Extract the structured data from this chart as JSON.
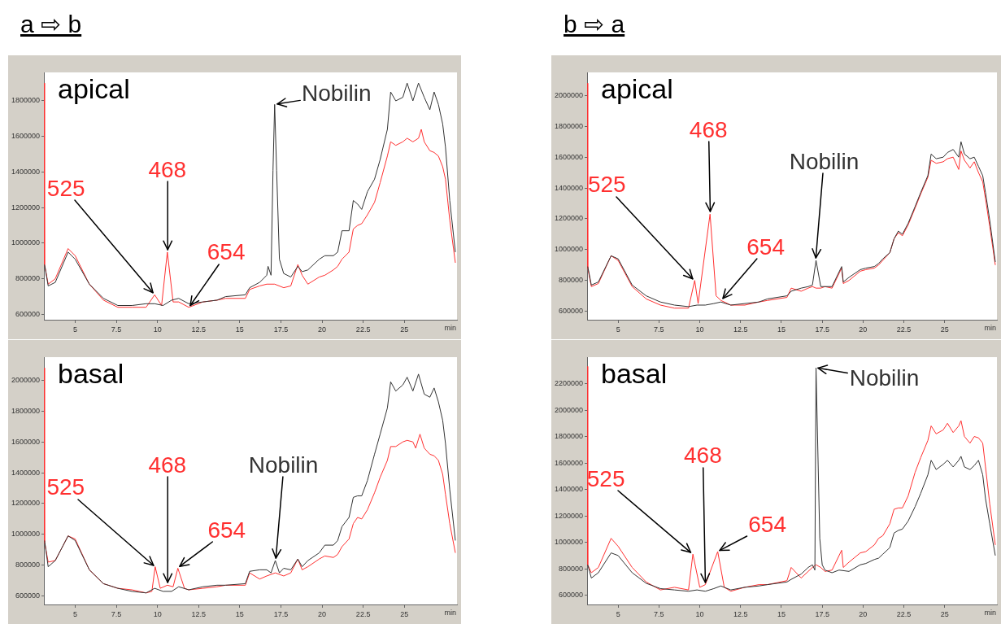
{
  "chart_data": [
    {
      "type": "line",
      "title": "a ⇨ b",
      "subtitle": "apical",
      "xlabel": "min",
      "xlim": [
        3.1,
        28.2
      ],
      "xticks": [
        5,
        7.5,
        10,
        12.5,
        15,
        17.5,
        20,
        22.5,
        25
      ],
      "ylim": [
        570000,
        1960000
      ],
      "yticks": [
        600000,
        800000,
        1000000,
        1200000,
        1400000,
        1600000,
        1800000
      ],
      "series": [
        {
          "color": "#333333",
          "x": [
            3.14,
            3.36,
            3.79,
            4.57,
            5,
            5.86,
            6.72,
            7.59,
            8.45,
            9.31,
            9.83,
            10.34,
            10.86,
            11.29,
            11.9,
            12.76,
            13.62,
            14.14,
            15.34,
            15.6,
            16.21,
            16.64,
            16.72,
            16.9,
            17.02,
            17.12,
            17.24,
            17.41,
            17.67,
            18.1,
            18.53,
            18.79,
            19.14,
            19.83,
            20.17,
            20.69,
            20.95,
            21.21,
            21.64,
            21.9,
            22.16,
            22.41,
            22.76,
            23.19,
            23.53,
            23.97,
            24.17,
            24.48,
            24.91,
            25.17,
            25.52,
            25.86,
            26.21,
            26.55,
            26.81,
            27.07,
            27.33,
            27.5,
            27.76,
            28.1
          ],
          "values": [
            880000,
            760000,
            780000,
            950000,
            910000,
            770000,
            690000,
            650000,
            650000,
            660000,
            660000,
            650000,
            680000,
            690000,
            660000,
            670000,
            680000,
            700000,
            710000,
            750000,
            780000,
            820000,
            870000,
            820000,
            1410000,
            1780000,
            1410000,
            910000,
            830000,
            810000,
            870000,
            840000,
            850000,
            910000,
            930000,
            930000,
            950000,
            1070000,
            1070000,
            1240000,
            1220000,
            1190000,
            1290000,
            1360000,
            1470000,
            1640000,
            1850000,
            1800000,
            1820000,
            1900000,
            1800000,
            1900000,
            1820000,
            1750000,
            1850000,
            1780000,
            1670000,
            1540000,
            1240000,
            950000
          ]
        },
        {
          "color": "#ff3030",
          "x": [
            3.1,
            3.14,
            3.36,
            3.79,
            4.57,
            5,
            5.86,
            6.72,
            7.59,
            8.45,
            9.31,
            9.83,
            10.25,
            10.6,
            10.95,
            11.29,
            11.9,
            12.76,
            13.62,
            14.14,
            15.34,
            15.6,
            16.21,
            16.64,
            17.12,
            17.67,
            18.1,
            18.53,
            18.79,
            19.14,
            19.83,
            20.17,
            20.69,
            20.95,
            21.21,
            21.64,
            21.9,
            22.16,
            22.41,
            22.76,
            23.19,
            23.53,
            23.97,
            24.17,
            24.48,
            24.91,
            25.17,
            25.52,
            25.86,
            26.03,
            26.21,
            26.55,
            26.81,
            27.07,
            27.33,
            27.5,
            27.76,
            28.1
          ],
          "values": [
            1900000,
            880000,
            770000,
            800000,
            970000,
            930000,
            770000,
            680000,
            640000,
            640000,
            640000,
            710000,
            650000,
            950000,
            670000,
            670000,
            640000,
            670000,
            680000,
            690000,
            690000,
            740000,
            760000,
            770000,
            770000,
            750000,
            760000,
            880000,
            820000,
            770000,
            810000,
            820000,
            850000,
            870000,
            910000,
            950000,
            1080000,
            1100000,
            1110000,
            1160000,
            1230000,
            1340000,
            1490000,
            1570000,
            1550000,
            1570000,
            1590000,
            1570000,
            1590000,
            1640000,
            1570000,
            1520000,
            1510000,
            1490000,
            1430000,
            1360000,
            1130000,
            890000
          ]
        }
      ],
      "annotations": [
        {
          "text": "525",
          "x": 9.83,
          "y": 710000
        },
        {
          "text": "468",
          "x": 10.6,
          "y": 950000
        },
        {
          "text": "654",
          "x": 11.9,
          "y": 640000
        },
        {
          "text": "Nobilin",
          "x": 17.12,
          "y": 1780000
        }
      ]
    },
    {
      "type": "line",
      "subtitle": "basal",
      "xlabel": "min",
      "xlim": [
        3.1,
        28.2
      ],
      "xticks": [
        5,
        7.5,
        10,
        12.5,
        15,
        17.5,
        20,
        22.5,
        25
      ],
      "ylim": [
        545000,
        2150000
      ],
      "yticks": [
        600000,
        800000,
        1000000,
        1200000,
        1400000,
        1600000,
        1800000,
        2000000
      ],
      "series": [
        {
          "color": "#333333",
          "x": [
            3.14,
            3.36,
            3.79,
            4.57,
            5,
            5.86,
            6.72,
            7.59,
            8.45,
            9.31,
            9.83,
            10.34,
            10.86,
            11.29,
            11.9,
            12.76,
            13.62,
            14.14,
            15.34,
            15.6,
            16.21,
            16.64,
            16.9,
            17.16,
            17.41,
            17.67,
            18.1,
            18.53,
            18.79,
            19.14,
            19.83,
            20.17,
            20.69,
            20.95,
            21.21,
            21.64,
            21.9,
            22.16,
            22.41,
            22.76,
            23.19,
            23.53,
            23.97,
            24.17,
            24.48,
            24.91,
            25.17,
            25.52,
            25.86,
            26.21,
            26.55,
            26.81,
            27.07,
            27.33,
            27.5,
            27.76,
            28.1
          ],
          "values": [
            960000,
            790000,
            830000,
            990000,
            960000,
            770000,
            680000,
            650000,
            630000,
            620000,
            650000,
            630000,
            630000,
            660000,
            640000,
            660000,
            670000,
            670000,
            680000,
            760000,
            770000,
            770000,
            750000,
            830000,
            750000,
            780000,
            770000,
            840000,
            790000,
            830000,
            880000,
            930000,
            930000,
            960000,
            1050000,
            1110000,
            1240000,
            1250000,
            1250000,
            1350000,
            1520000,
            1650000,
            1820000,
            1990000,
            1930000,
            1970000,
            2020000,
            1930000,
            2040000,
            1910000,
            1890000,
            1950000,
            1860000,
            1740000,
            1590000,
            1290000,
            960000
          ]
        },
        {
          "color": "#ff3030",
          "x": [
            3.1,
            3.14,
            3.36,
            3.79,
            4.57,
            5,
            5.86,
            6.72,
            7.59,
            8.45,
            9.31,
            9.66,
            9.86,
            10.17,
            10.6,
            10.95,
            11.24,
            11.64,
            11.9,
            12.76,
            13.62,
            14.14,
            15.34,
            15.6,
            16.21,
            16.64,
            17.16,
            17.67,
            18.1,
            18.53,
            18.79,
            19.14,
            19.83,
            20.17,
            20.69,
            20.95,
            21.21,
            21.64,
            21.9,
            22.16,
            22.41,
            22.76,
            23.19,
            23.53,
            23.97,
            24.17,
            24.48,
            24.91,
            25.17,
            25.52,
            25.69,
            25.95,
            26.21,
            26.55,
            26.81,
            27.07,
            27.33,
            27.5,
            27.76,
            28.1
          ],
          "values": [
            2080000,
            950000,
            820000,
            830000,
            990000,
            970000,
            770000,
            680000,
            650000,
            640000,
            620000,
            630000,
            790000,
            650000,
            670000,
            660000,
            780000,
            650000,
            640000,
            650000,
            660000,
            670000,
            670000,
            750000,
            710000,
            730000,
            750000,
            730000,
            750000,
            840000,
            770000,
            790000,
            840000,
            860000,
            850000,
            870000,
            920000,
            970000,
            1070000,
            1110000,
            1100000,
            1160000,
            1270000,
            1370000,
            1480000,
            1570000,
            1570000,
            1600000,
            1610000,
            1600000,
            1560000,
            1650000,
            1560000,
            1520000,
            1510000,
            1480000,
            1390000,
            1260000,
            1070000,
            880000
          ]
        }
      ],
      "annotations": [
        {
          "text": "525",
          "x": 9.86,
          "y": 790000
        },
        {
          "text": "468",
          "x": 10.6,
          "y": 670000
        },
        {
          "text": "654",
          "x": 11.24,
          "y": 780000
        },
        {
          "text": "Nobilin",
          "x": 17.16,
          "y": 830000
        }
      ]
    },
    {
      "type": "line",
      "title": "b ⇨ a",
      "subtitle": "apical",
      "xlabel": "min",
      "xlim": [
        3.1,
        28.2
      ],
      "xticks": [
        5,
        7.5,
        10,
        12.5,
        15,
        17.5,
        20,
        22.5,
        25
      ],
      "ylim": [
        545000,
        2150000
      ],
      "yticks": [
        600000,
        800000,
        1000000,
        1200000,
        1400000,
        1600000,
        1800000,
        2000000
      ],
      "series": [
        {
          "color": "#333333",
          "x": [
            3.14,
            3.36,
            3.79,
            4.57,
            5,
            5.86,
            6.72,
            7.59,
            8.45,
            9.31,
            9.83,
            10.34,
            10.86,
            11.29,
            11.9,
            12.76,
            13.62,
            14.14,
            15.34,
            15.6,
            16.21,
            16.64,
            16.9,
            17.12,
            17.41,
            17.67,
            18.1,
            18.69,
            18.79,
            19.14,
            19.83,
            20.17,
            20.69,
            20.95,
            21.21,
            21.64,
            21.9,
            22.16,
            22.41,
            22.76,
            23.19,
            23.53,
            23.97,
            24.17,
            24.48,
            24.91,
            25.17,
            25.52,
            25.86,
            26.0,
            26.21,
            26.55,
            26.81,
            27.07,
            27.33,
            27.5,
            27.76,
            28.1
          ],
          "values": [
            890000,
            770000,
            790000,
            960000,
            940000,
            770000,
            700000,
            660000,
            640000,
            630000,
            640000,
            640000,
            650000,
            660000,
            640000,
            650000,
            660000,
            680000,
            700000,
            730000,
            750000,
            760000,
            770000,
            930000,
            760000,
            760000,
            760000,
            890000,
            790000,
            820000,
            870000,
            880000,
            890000,
            910000,
            940000,
            980000,
            1070000,
            1120000,
            1100000,
            1170000,
            1280000,
            1370000,
            1480000,
            1620000,
            1590000,
            1600000,
            1630000,
            1650000,
            1600000,
            1700000,
            1620000,
            1590000,
            1600000,
            1540000,
            1480000,
            1370000,
            1190000,
            920000
          ]
        },
        {
          "color": "#ff3030",
          "x": [
            3.1,
            3.14,
            3.36,
            3.79,
            4.57,
            5,
            5.86,
            6.72,
            7.59,
            8.45,
            9.31,
            9.69,
            9.9,
            10.63,
            11.0,
            11.3,
            11.9,
            12.76,
            13.62,
            14.14,
            15.34,
            15.6,
            16.21,
            16.64,
            16.9,
            17.12,
            17.41,
            17.67,
            18.1,
            18.69,
            18.79,
            19.14,
            19.83,
            20.17,
            20.69,
            20.95,
            21.21,
            21.64,
            21.9,
            22.16,
            22.41,
            22.76,
            23.19,
            23.53,
            23.97,
            24.17,
            24.48,
            24.91,
            25.17,
            25.52,
            25.86,
            26.0,
            26.21,
            26.55,
            26.81,
            27.07,
            27.33,
            27.5,
            27.76,
            28.1
          ],
          "values": [
            2080000,
            880000,
            760000,
            780000,
            960000,
            930000,
            760000,
            680000,
            640000,
            620000,
            620000,
            800000,
            650000,
            1230000,
            700000,
            670000,
            640000,
            640000,
            660000,
            670000,
            690000,
            750000,
            730000,
            750000,
            760000,
            750000,
            750000,
            760000,
            750000,
            880000,
            780000,
            800000,
            860000,
            870000,
            880000,
            900000,
            930000,
            980000,
            1070000,
            1110000,
            1090000,
            1160000,
            1270000,
            1360000,
            1470000,
            1580000,
            1560000,
            1570000,
            1590000,
            1600000,
            1520000,
            1640000,
            1580000,
            1530000,
            1570000,
            1500000,
            1440000,
            1330000,
            1150000,
            900000
          ]
        }
      ],
      "annotations": [
        {
          "text": "525",
          "x": 9.69,
          "y": 800000
        },
        {
          "text": "468",
          "x": 10.63,
          "y": 1230000
        },
        {
          "text": "654",
          "x": 11.3,
          "y": 670000
        },
        {
          "text": "Nobilin",
          "x": 17.12,
          "y": 930000
        }
      ]
    },
    {
      "type": "line",
      "subtitle": "basal",
      "xlabel": "min",
      "xlim": [
        3.1,
        28.2
      ],
      "xticks": [
        5,
        7.5,
        10,
        12.5,
        15,
        17.5,
        20,
        22.5,
        25
      ],
      "ylim": [
        530000,
        2400000
      ],
      "yticks": [
        600000,
        800000,
        1000000,
        1200000,
        1400000,
        1600000,
        1800000,
        2000000,
        2200000
      ],
      "series": [
        {
          "color": "#333333",
          "x": [
            3.14,
            3.36,
            3.79,
            4.57,
            5,
            5.86,
            6.72,
            7.59,
            8.45,
            9.31,
            9.83,
            10.34,
            10.86,
            11.29,
            11.9,
            12.76,
            13.62,
            14.14,
            15.34,
            15.6,
            16.21,
            16.64,
            16.9,
            17.05,
            17.12,
            17.35,
            17.5,
            17.67,
            18.1,
            18.53,
            19.14,
            19.83,
            20.17,
            20.69,
            20.95,
            21.21,
            21.64,
            21.9,
            22.16,
            22.41,
            22.76,
            23.19,
            23.53,
            23.97,
            24.17,
            24.48,
            24.91,
            25.17,
            25.52,
            25.86,
            26.0,
            26.21,
            26.55,
            26.81,
            27.07,
            27.33,
            27.5,
            27.76,
            28.1
          ],
          "values": [
            830000,
            730000,
            770000,
            920000,
            900000,
            770000,
            690000,
            650000,
            640000,
            630000,
            640000,
            630000,
            650000,
            670000,
            640000,
            660000,
            670000,
            680000,
            700000,
            720000,
            760000,
            810000,
            830000,
            790000,
            2320000,
            1030000,
            830000,
            790000,
            770000,
            790000,
            780000,
            830000,
            840000,
            870000,
            880000,
            910000,
            960000,
            1070000,
            1090000,
            1100000,
            1160000,
            1270000,
            1370000,
            1510000,
            1620000,
            1550000,
            1590000,
            1620000,
            1570000,
            1620000,
            1650000,
            1570000,
            1550000,
            1580000,
            1620000,
            1510000,
            1330000,
            1140000,
            900000
          ]
        },
        {
          "color": "#ff3030",
          "x": [
            3.1,
            3.14,
            3.36,
            3.79,
            4.57,
            5,
            5.86,
            6.72,
            7.59,
            8.45,
            9.31,
            9.58,
            10.0,
            10.34,
            11.1,
            11.5,
            11.9,
            12.76,
            13.62,
            14.14,
            15.34,
            15.6,
            16.21,
            16.64,
            16.9,
            17.12,
            17.41,
            17.67,
            18.1,
            18.69,
            18.79,
            19.14,
            19.83,
            20.17,
            20.69,
            20.95,
            21.21,
            21.64,
            21.9,
            22.16,
            22.41,
            22.76,
            23.19,
            23.53,
            23.97,
            24.17,
            24.48,
            24.91,
            25.17,
            25.52,
            25.86,
            26.0,
            26.21,
            26.55,
            26.81,
            27.07,
            27.33,
            27.5,
            27.76,
            28.1
          ],
          "values": [
            2330000,
            830000,
            770000,
            810000,
            1030000,
            970000,
            810000,
            700000,
            640000,
            660000,
            640000,
            910000,
            660000,
            680000,
            930000,
            660000,
            630000,
            660000,
            680000,
            680000,
            710000,
            810000,
            730000,
            780000,
            810000,
            830000,
            810000,
            780000,
            790000,
            940000,
            810000,
            850000,
            920000,
            930000,
            980000,
            1030000,
            1050000,
            1140000,
            1250000,
            1260000,
            1260000,
            1350000,
            1530000,
            1640000,
            1770000,
            1880000,
            1820000,
            1850000,
            1900000,
            1830000,
            1880000,
            1920000,
            1800000,
            1750000,
            1800000,
            1790000,
            1750000,
            1570000,
            1290000,
            980000
          ]
        }
      ],
      "annotations": [
        {
          "text": "525",
          "x": 9.58,
          "y": 910000
        },
        {
          "text": "468",
          "x": 10.34,
          "y": 680000
        },
        {
          "text": "654",
          "x": 11.1,
          "y": 930000
        },
        {
          "text": "Nobilin",
          "x": 17.12,
          "y": 2320000
        }
      ]
    }
  ]
}
